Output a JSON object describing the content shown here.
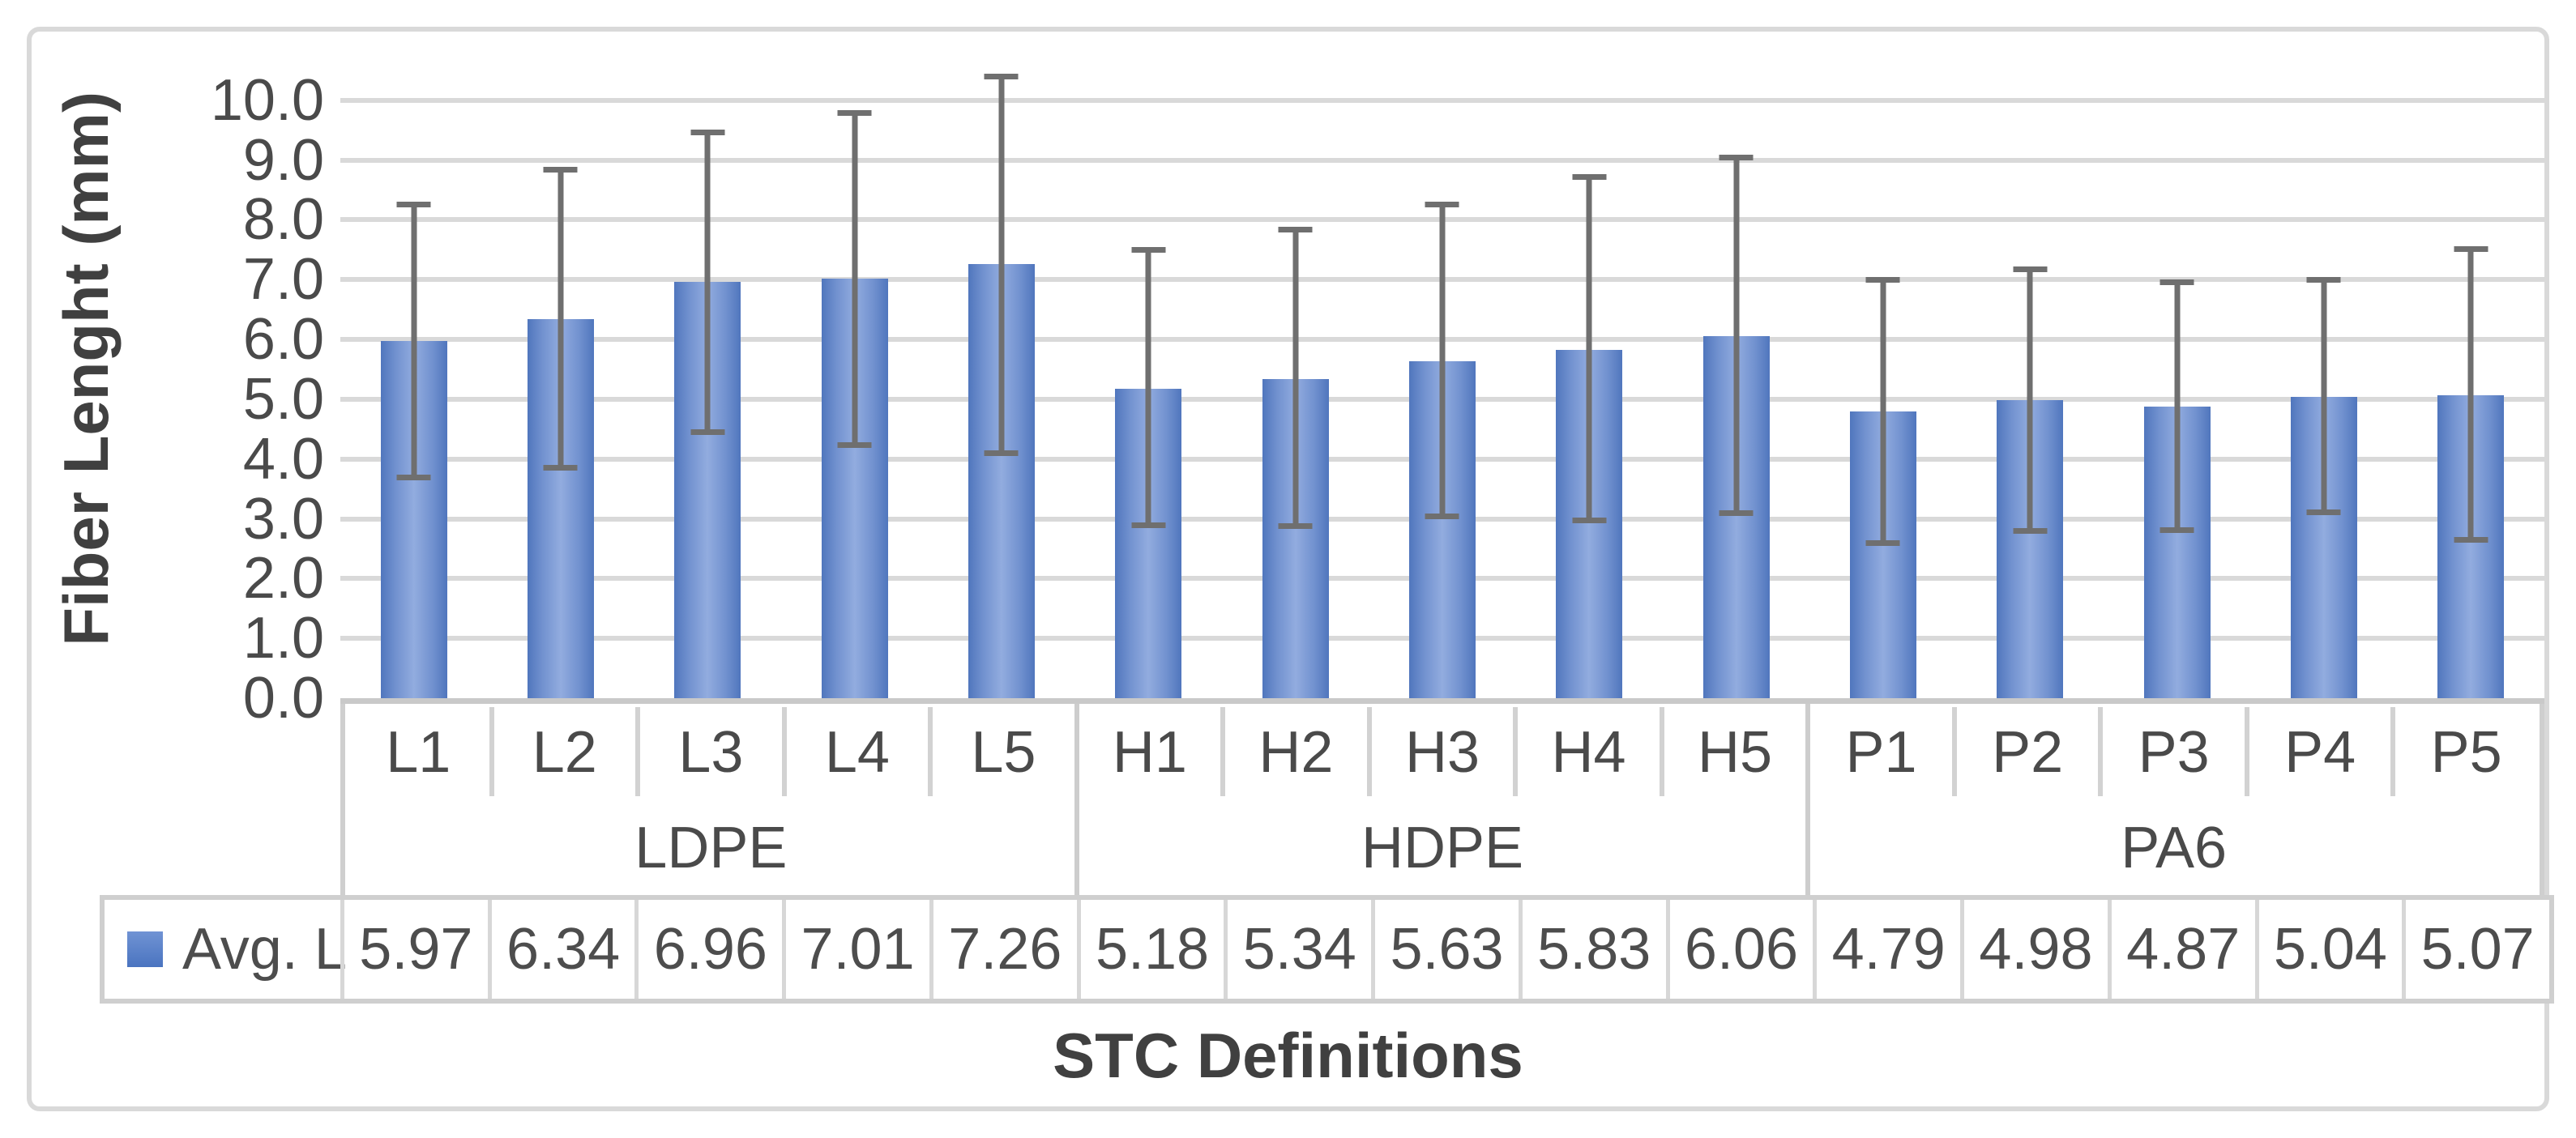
{
  "chart_data": {
    "type": "bar",
    "title": "",
    "xlabel": "STC Definitions",
    "ylabel": "Fiber Lenght (mm)",
    "legend_label": "Avg. L",
    "ylim": [
      0,
      10.5
    ],
    "ymax_layout": 11.08,
    "grid": true,
    "legend_position": "bottom-table",
    "y_ticks": [
      "10.0",
      "9.0",
      "8.0",
      "7.0",
      "6.0",
      "5.0",
      "4.0",
      "3.0",
      "2.0",
      "1.0",
      "0.0"
    ],
    "y_tick_values": [
      10,
      9,
      8,
      7,
      6,
      5,
      4,
      3,
      2,
      1,
      0
    ],
    "categories": [
      "L1",
      "L2",
      "L3",
      "L4",
      "L5",
      "H1",
      "H2",
      "H3",
      "H4",
      "H5",
      "P1",
      "P2",
      "P3",
      "P4",
      "P5"
    ],
    "groups": [
      {
        "label": "LDPE",
        "categories": [
          "L1",
          "L2",
          "L3",
          "L4",
          "L5"
        ]
      },
      {
        "label": "HDPE",
        "categories": [
          "H1",
          "H2",
          "H3",
          "H4",
          "H5"
        ]
      },
      {
        "label": "PA6",
        "categories": [
          "P1",
          "P2",
          "P3",
          "P4",
          "P5"
        ]
      }
    ],
    "series": [
      {
        "name": "Avg. L",
        "values": [
          5.97,
          6.34,
          6.96,
          7.01,
          7.26,
          5.18,
          5.34,
          5.63,
          5.83,
          6.06,
          4.79,
          4.98,
          4.87,
          5.04,
          5.07
        ],
        "display": [
          "5.97",
          "6.34",
          "6.96",
          "7.01",
          "7.26",
          "5.18",
          "5.34",
          "5.63",
          "5.83",
          "6.06",
          "4.79",
          "4.98",
          "4.87",
          "5.04",
          "5.07"
        ],
        "error_high": [
          8.3,
          8.88,
          9.51,
          9.83,
          10.45,
          7.54,
          7.88,
          8.3,
          8.77,
          9.09,
          7.05,
          7.22,
          7.0,
          7.05,
          7.56
        ],
        "error_low": [
          3.65,
          3.8,
          4.4,
          4.18,
          4.05,
          2.85,
          2.83,
          2.99,
          2.92,
          3.05,
          2.54,
          2.75,
          2.76,
          3.06,
          2.6
        ]
      }
    ],
    "colors": {
      "bar": "#4d79c7",
      "bar_gradient_mid": "#92acdf",
      "error_bar": "#6f6f6f",
      "gridline": "#d9d9d9",
      "axis_line": "#c9c9c9",
      "table_border": "#cfcfcf",
      "text": "#4a4a4a"
    }
  }
}
